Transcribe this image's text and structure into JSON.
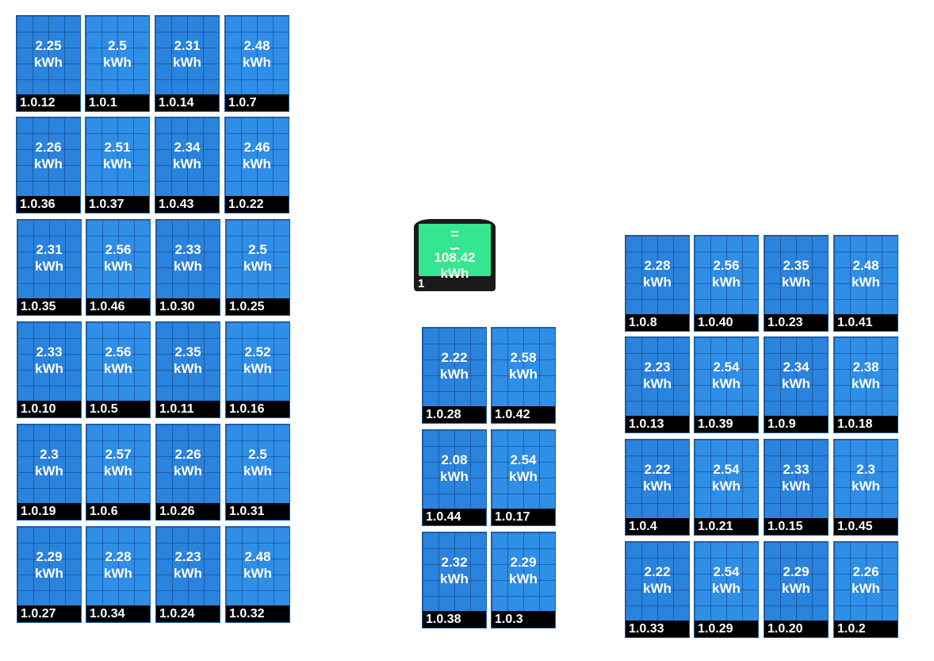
{
  "inverter": {
    "energy": "108.42",
    "unit": "kWh",
    "id": "1",
    "icon": "ac-dc-symbol-icon"
  },
  "unit": "kWh",
  "panels": [
    {
      "id": "1.0.12",
      "value": "2.25"
    },
    {
      "id": "1.0.1",
      "value": "2.5"
    },
    {
      "id": "1.0.14",
      "value": "2.31"
    },
    {
      "id": "1.0.7",
      "value": "2.48"
    },
    {
      "id": "1.0.36",
      "value": "2.26"
    },
    {
      "id": "1.0.37",
      "value": "2.51"
    },
    {
      "id": "1.0.43",
      "value": "2.34"
    },
    {
      "id": "1.0.22",
      "value": "2.46"
    },
    {
      "id": "1.0.35",
      "value": "2.31"
    },
    {
      "id": "1.0.46",
      "value": "2.56"
    },
    {
      "id": "1.0.30",
      "value": "2.33"
    },
    {
      "id": "1.0.25",
      "value": "2.5"
    },
    {
      "id": "1.0.10",
      "value": "2.33"
    },
    {
      "id": "1.0.5",
      "value": "2.56"
    },
    {
      "id": "1.0.11",
      "value": "2.35"
    },
    {
      "id": "1.0.16",
      "value": "2.52"
    },
    {
      "id": "1.0.19",
      "value": "2.3"
    },
    {
      "id": "1.0.6",
      "value": "2.57"
    },
    {
      "id": "1.0.26",
      "value": "2.26"
    },
    {
      "id": "1.0.31",
      "value": "2.5"
    },
    {
      "id": "1.0.27",
      "value": "2.29"
    },
    {
      "id": "1.0.34",
      "value": "2.28"
    },
    {
      "id": "1.0.24",
      "value": "2.23"
    },
    {
      "id": "1.0.32",
      "value": "2.48"
    },
    {
      "id": "1.0.28",
      "value": "2.22"
    },
    {
      "id": "1.0.42",
      "value": "2.58"
    },
    {
      "id": "1.0.44",
      "value": "2.08"
    },
    {
      "id": "1.0.17",
      "value": "2.54"
    },
    {
      "id": "1.0.38",
      "value": "2.32"
    },
    {
      "id": "1.0.3",
      "value": "2.29"
    },
    {
      "id": "1.0.8",
      "value": "2.28"
    },
    {
      "id": "1.0.40",
      "value": "2.56"
    },
    {
      "id": "1.0.23",
      "value": "2.35"
    },
    {
      "id": "1.0.41",
      "value": "2.48"
    },
    {
      "id": "1.0.13",
      "value": "2.23"
    },
    {
      "id": "1.0.39",
      "value": "2.54"
    },
    {
      "id": "1.0.9",
      "value": "2.34"
    },
    {
      "id": "1.0.18",
      "value": "2.38"
    },
    {
      "id": "1.0.4",
      "value": "2.22"
    },
    {
      "id": "1.0.21",
      "value": "2.54"
    },
    {
      "id": "1.0.15",
      "value": "2.33"
    },
    {
      "id": "1.0.45",
      "value": "2.3"
    },
    {
      "id": "1.0.33",
      "value": "2.22"
    },
    {
      "id": "1.0.29",
      "value": "2.54"
    },
    {
      "id": "1.0.20",
      "value": "2.29"
    },
    {
      "id": "1.0.2",
      "value": "2.26"
    }
  ]
}
